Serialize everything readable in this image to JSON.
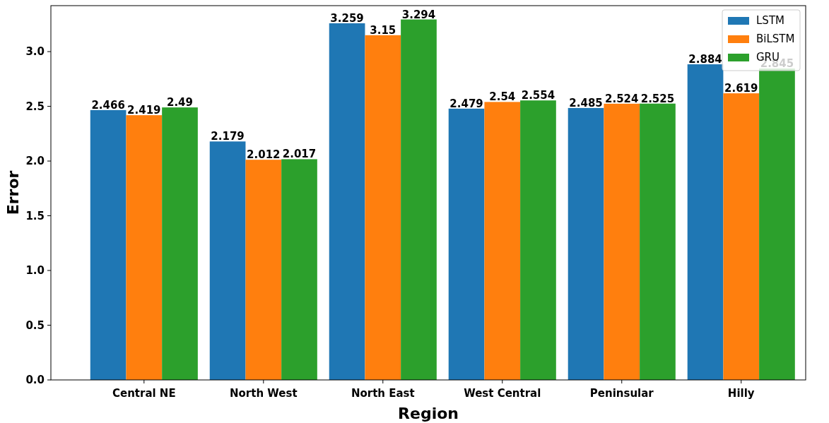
{
  "chart_data": {
    "type": "bar",
    "xlabel": "Region",
    "ylabel": "Error",
    "categories": [
      "Central NE",
      "North West",
      "North East",
      "West Central",
      "Peninsular",
      "Hilly"
    ],
    "series": [
      {
        "name": "LSTM",
        "color": "#1f77b4",
        "values": [
          2.466,
          2.179,
          3.259,
          2.479,
          2.485,
          2.884
        ]
      },
      {
        "name": "BiLSTM",
        "color": "#ff7f0e",
        "values": [
          2.419,
          2.012,
          3.15,
          2.54,
          2.524,
          2.619
        ]
      },
      {
        "name": "GRU",
        "color": "#2ca02c",
        "values": [
          2.49,
          2.017,
          3.294,
          2.554,
          2.525,
          2.845
        ]
      }
    ],
    "ylim": [
      0,
      3.42
    ],
    "yticks": [
      {
        "value": 0,
        "label": "0.0"
      },
      0.5,
      {
        "value": 1,
        "label": "1.0"
      },
      1.5,
      {
        "value": 2,
        "label": "2.0"
      },
      2.5,
      {
        "value": 3,
        "label": "3.0"
      }
    ],
    "data_labels": true,
    "legend": "top right",
    "grid": false
  }
}
